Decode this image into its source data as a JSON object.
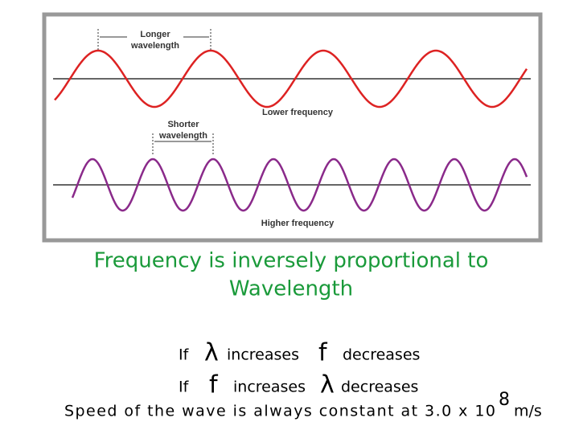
{
  "figure": {
    "top_label": [
      "Longer",
      "wavelength"
    ],
    "top_caption": "Lower frequency",
    "bottom_label": [
      "Shorter",
      "wavelength"
    ],
    "bottom_caption": "Higher frequency"
  },
  "heading": [
    "Frequency is inversely proportional to",
    "Wavelength"
  ],
  "lines": [
    [
      "If",
      "λ",
      "increases",
      "f",
      "decreases"
    ],
    [
      "If",
      "f",
      "increases",
      "λ",
      "decreases"
    ]
  ],
  "speed": {
    "text": "Speed of the wave is always constant at 3.0 x 10",
    "exponent": "8",
    "unit": "m/s"
  }
}
